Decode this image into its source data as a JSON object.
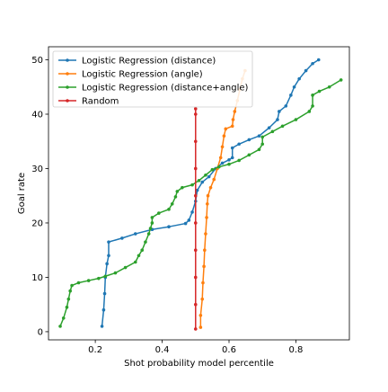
{
  "chart_data": {
    "type": "line",
    "title": "",
    "xlabel": "Shot probability model percentile",
    "ylabel": "Goal rate",
    "xlim": [
      0.06,
      0.96
    ],
    "ylim": [
      -1.5,
      52.4
    ],
    "xticks": [
      0.2,
      0.4,
      0.6,
      0.8
    ],
    "xtick_labels": [
      "0.2",
      "0.4",
      "0.6",
      "0.8"
    ],
    "yticks": [
      0,
      10,
      20,
      30,
      40,
      50
    ],
    "ytick_labels": [
      "0",
      "10",
      "20",
      "30",
      "40",
      "50"
    ],
    "grid": false,
    "legend_position": "top-left",
    "series": [
      {
        "name": "Logistic Regression (distance)",
        "color": "#1f77b4",
        "points": [
          [
            0.22,
            1.0
          ],
          [
            0.225,
            4.0
          ],
          [
            0.228,
            7.0
          ],
          [
            0.23,
            10.0
          ],
          [
            0.235,
            12.5
          ],
          [
            0.24,
            14.0
          ],
          [
            0.24,
            16.5
          ],
          [
            0.28,
            17.2
          ],
          [
            0.32,
            18.0
          ],
          [
            0.37,
            18.8
          ],
          [
            0.42,
            19.3
          ],
          [
            0.47,
            19.9
          ],
          [
            0.48,
            20.5
          ],
          [
            0.49,
            22.0
          ],
          [
            0.5,
            24.0
          ],
          [
            0.505,
            26.0
          ],
          [
            0.52,
            27.5
          ],
          [
            0.54,
            28.5
          ],
          [
            0.56,
            30.0
          ],
          [
            0.58,
            31.0
          ],
          [
            0.6,
            31.6
          ],
          [
            0.61,
            32.0
          ],
          [
            0.61,
            33.8
          ],
          [
            0.63,
            34.5
          ],
          [
            0.66,
            35.3
          ],
          [
            0.69,
            36.0
          ],
          [
            0.72,
            37.5
          ],
          [
            0.745,
            39.0
          ],
          [
            0.75,
            40.5
          ],
          [
            0.77,
            41.5
          ],
          [
            0.785,
            43.5
          ],
          [
            0.795,
            45.0
          ],
          [
            0.81,
            46.5
          ],
          [
            0.83,
            48.0
          ],
          [
            0.85,
            49.3
          ],
          [
            0.868,
            50.0
          ]
        ]
      },
      {
        "name": "Logistic Regression (angle)",
        "color": "#ff7f0e",
        "points": [
          [
            0.515,
            0.8
          ],
          [
            0.515,
            3.0
          ],
          [
            0.52,
            6.0
          ],
          [
            0.522,
            9.0
          ],
          [
            0.525,
            12.0
          ],
          [
            0.527,
            15.0
          ],
          [
            0.53,
            18.0
          ],
          [
            0.533,
            21.0
          ],
          [
            0.535,
            23.5
          ],
          [
            0.537,
            25.0
          ],
          [
            0.545,
            26.5
          ],
          [
            0.555,
            28.0
          ],
          [
            0.565,
            30.0
          ],
          [
            0.575,
            32.0
          ],
          [
            0.58,
            34.0
          ],
          [
            0.585,
            36.0
          ],
          [
            0.59,
            37.3
          ],
          [
            0.61,
            37.8
          ],
          [
            0.612,
            39.0
          ],
          [
            0.617,
            40.5
          ],
          [
            0.625,
            42.5
          ],
          [
            0.632,
            44.5
          ],
          [
            0.64,
            46.5
          ],
          [
            0.648,
            48.0
          ]
        ]
      },
      {
        "name": "Logistic Regression (distance+angle)",
        "color": "#2ca02c",
        "points": [
          [
            0.095,
            1.0
          ],
          [
            0.105,
            2.5
          ],
          [
            0.115,
            4.5
          ],
          [
            0.12,
            6.0
          ],
          [
            0.125,
            7.5
          ],
          [
            0.13,
            8.5
          ],
          [
            0.15,
            9.0
          ],
          [
            0.18,
            9.4
          ],
          [
            0.21,
            9.8
          ],
          [
            0.23,
            10.2
          ],
          [
            0.26,
            10.8
          ],
          [
            0.29,
            11.8
          ],
          [
            0.32,
            12.8
          ],
          [
            0.33,
            14.0
          ],
          [
            0.34,
            15.0
          ],
          [
            0.35,
            16.5
          ],
          [
            0.36,
            18.0
          ],
          [
            0.365,
            19.0
          ],
          [
            0.37,
            20.0
          ],
          [
            0.37,
            21.0
          ],
          [
            0.39,
            21.8
          ],
          [
            0.42,
            22.5
          ],
          [
            0.43,
            23.5
          ],
          [
            0.44,
            24.8
          ],
          [
            0.445,
            25.8
          ],
          [
            0.46,
            26.5
          ],
          [
            0.49,
            27.0
          ],
          [
            0.51,
            27.8
          ],
          [
            0.53,
            28.8
          ],
          [
            0.55,
            29.8
          ],
          [
            0.57,
            30.3
          ],
          [
            0.6,
            30.8
          ],
          [
            0.63,
            31.5
          ],
          [
            0.66,
            32.5
          ],
          [
            0.69,
            33.5
          ],
          [
            0.7,
            34.5
          ],
          [
            0.7,
            35.8
          ],
          [
            0.73,
            36.8
          ],
          [
            0.76,
            37.8
          ],
          [
            0.8,
            39.0
          ],
          [
            0.84,
            40.5
          ],
          [
            0.85,
            41.5
          ],
          [
            0.85,
            43.5
          ],
          [
            0.87,
            44.2
          ],
          [
            0.9,
            45.0
          ],
          [
            0.935,
            46.3
          ]
        ]
      },
      {
        "name": "Random",
        "color": "#d62728",
        "points": [
          [
            0.5,
            0.5
          ],
          [
            0.5,
            5.0
          ],
          [
            0.5,
            10.0
          ],
          [
            0.5,
            15.0
          ],
          [
            0.5,
            20.0
          ],
          [
            0.5,
            25.0
          ],
          [
            0.5,
            30.0
          ],
          [
            0.5,
            35.0
          ],
          [
            0.5,
            40.0
          ],
          [
            0.5,
            41.0
          ]
        ]
      }
    ]
  }
}
